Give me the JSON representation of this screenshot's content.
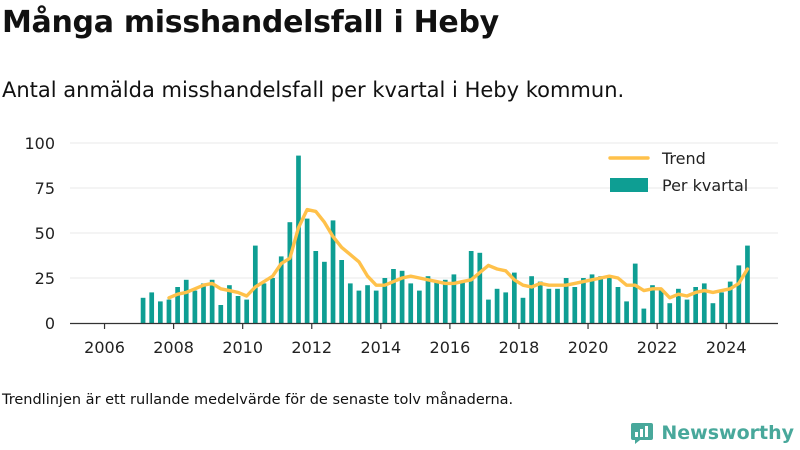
{
  "title": "Många misshandelsfall i Heby",
  "subtitle": "Antal anmälda misshandelsfall per kvartal i Heby kommun.",
  "footnote": "Trendlinjen är ett rullande medelvärde för de senaste tolv månaderna.",
  "brand": {
    "name": "Newsworthy",
    "icon": "newsworthy-logo-icon"
  },
  "colors": {
    "bars": "#0e9e93",
    "trend": "#ffc14a",
    "axis": "#333333",
    "grid": "#e8e8e8",
    "brand": "#48a89b"
  },
  "chart_data": {
    "type": "bar",
    "x_ticks": [
      "2006",
      "2008",
      "2010",
      "2012",
      "2014",
      "2016",
      "2018",
      "2020",
      "2022",
      "2024"
    ],
    "y_ticks": [
      "0",
      "25",
      "50",
      "75",
      "100"
    ],
    "xlim": [
      "2005-01-01",
      "2025-07-01"
    ],
    "ylim": [
      0,
      100
    ],
    "grid": "horizontal",
    "legend_position": "top-right",
    "legend": {
      "trend_label": "Trend",
      "bars_label": "Per kvartal"
    },
    "x": [
      "2007-01",
      "2007-04",
      "2007-07",
      "2007-10",
      "2008-01",
      "2008-04",
      "2008-07",
      "2008-10",
      "2009-01",
      "2009-04",
      "2009-07",
      "2009-10",
      "2010-01",
      "2010-04",
      "2010-07",
      "2010-10",
      "2011-01",
      "2011-04",
      "2011-07",
      "2011-10",
      "2012-01",
      "2012-04",
      "2012-07",
      "2012-10",
      "2013-01",
      "2013-04",
      "2013-07",
      "2013-10",
      "2014-01",
      "2014-04",
      "2014-07",
      "2014-10",
      "2015-01",
      "2015-04",
      "2015-07",
      "2015-10",
      "2016-01",
      "2016-04",
      "2016-07",
      "2016-10",
      "2017-01",
      "2017-04",
      "2017-07",
      "2017-10",
      "2018-01",
      "2018-04",
      "2018-07",
      "2018-10",
      "2019-01",
      "2019-04",
      "2019-07",
      "2019-10",
      "2020-01",
      "2020-04",
      "2020-07",
      "2020-10",
      "2021-01",
      "2021-04",
      "2021-07",
      "2021-10",
      "2022-01",
      "2022-04",
      "2022-07",
      "2022-10",
      "2023-01",
      "2023-04",
      "2023-07",
      "2023-10",
      "2024-01",
      "2024-04",
      "2024-07"
    ],
    "series": [
      {
        "name": "Per kvartal",
        "values": [
          14,
          17,
          12,
          13,
          20,
          24,
          18,
          22,
          24,
          10,
          21,
          15,
          13,
          43,
          22,
          25,
          37,
          56,
          93,
          58,
          40,
          34,
          57,
          35,
          22,
          18,
          21,
          18,
          25,
          30,
          29,
          22,
          18,
          26,
          23,
          24,
          27,
          23,
          40,
          39,
          13,
          19,
          17,
          28,
          14,
          26,
          23,
          19,
          19,
          25,
          20,
          25,
          27,
          26,
          25,
          20,
          12,
          33,
          8,
          21,
          19,
          11,
          19,
          13,
          20,
          22,
          11,
          17,
          23,
          32,
          43
        ]
      },
      {
        "name": "Trend",
        "values": [
          null,
          null,
          null,
          14,
          16,
          17,
          19,
          21,
          22,
          19,
          18,
          17,
          15,
          20,
          23,
          26,
          33,
          36,
          53,
          63,
          62,
          56,
          48,
          42,
          38,
          34,
          26,
          21,
          21,
          23,
          25,
          26,
          25,
          24,
          23,
          22,
          22,
          23,
          24,
          28,
          32,
          30,
          29,
          24,
          21,
          20,
          22,
          21,
          21,
          21,
          22,
          23,
          24,
          25,
          26,
          25,
          21,
          21,
          18,
          19,
          19,
          14,
          16,
          15,
          17,
          18,
          17,
          18,
          19,
          22,
          30
        ]
      }
    ]
  }
}
